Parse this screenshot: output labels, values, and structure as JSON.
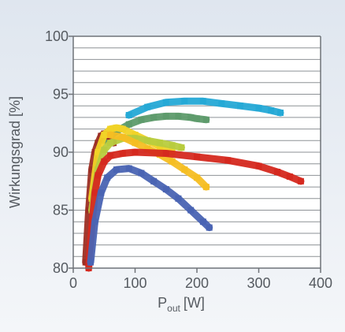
{
  "chart_data": {
    "type": "scatter",
    "xlabel": "P",
    "xlabel_sub": "out",
    "xlabel_unit": "[W]",
    "ylabel": "Wirkungsgrad [%]",
    "xlim": [
      0,
      400
    ],
    "ylim": [
      80,
      100
    ],
    "x_ticks": [
      "0",
      "100",
      "200",
      "300",
      "400"
    ],
    "y_ticks": [
      "80",
      "85",
      "90",
      "95",
      "100"
    ],
    "grid": "horizontal",
    "colors": {
      "background_top": "#dfe6ef",
      "background_bottom": "#f4f6f9",
      "plot_bg": "#ffffff",
      "grid": "#8e9296",
      "axis": "#6f7378",
      "text": "#555a60"
    },
    "series": [
      {
        "color": "#25a9d6",
        "x": [
          90,
          120,
          150,
          180,
          210,
          240,
          270,
          300,
          320,
          335
        ],
        "y": [
          93.2,
          93.9,
          94.3,
          94.4,
          94.4,
          94.2,
          94.0,
          93.8,
          93.6,
          93.4
        ]
      },
      {
        "color": "#5e9b6c",
        "x": [
          50,
          70,
          90,
          110,
          130,
          150,
          170,
          190,
          200,
          215
        ],
        "y": [
          91.0,
          91.8,
          92.4,
          92.8,
          93.0,
          93.1,
          93.1,
          93.0,
          92.9,
          92.8
        ]
      },
      {
        "color": "#9c2f24",
        "x": [
          20,
          25,
          30,
          35,
          40,
          45,
          50,
          55,
          60,
          65
        ],
        "y": [
          80.5,
          85.0,
          88.5,
          90.0,
          90.8,
          91.4,
          91.6,
          91.5,
          91.2,
          90.8
        ]
      },
      {
        "color": "#f1d327",
        "x": [
          30,
          40,
          50,
          60,
          70,
          80,
          100,
          120,
          140,
          160
        ],
        "y": [
          86.0,
          90.0,
          91.5,
          92.0,
          92.1,
          92.0,
          91.5,
          91.0,
          90.5,
          90.0
        ]
      },
      {
        "color": "#b8cc3e",
        "x": [
          30,
          40,
          50,
          60,
          80,
          100,
          120,
          140,
          160,
          175
        ],
        "y": [
          85.0,
          88.5,
          90.2,
          90.8,
          91.2,
          91.2,
          91.0,
          90.8,
          90.6,
          90.4
        ]
      },
      {
        "color": "#f5be23",
        "x": [
          60,
          80,
          100,
          120,
          140,
          160,
          180,
          200,
          215
        ],
        "y": [
          91.5,
          91.3,
          90.8,
          90.3,
          89.8,
          89.2,
          88.5,
          87.8,
          87.0
        ]
      },
      {
        "color": "#d5291f",
        "x": [
          25,
          30,
          35,
          40,
          50,
          60,
          80,
          100,
          150,
          200,
          250,
          300,
          330,
          350,
          368
        ],
        "y": [
          80.0,
          83.5,
          86.5,
          88.0,
          89.2,
          89.7,
          89.9,
          90.0,
          89.9,
          89.6,
          89.3,
          88.8,
          88.3,
          87.9,
          87.5
        ]
      },
      {
        "color": "#4a64b3",
        "x": [
          28,
          35,
          45,
          55,
          70,
          90,
          110,
          130,
          150,
          170,
          190,
          210,
          220
        ],
        "y": [
          80.5,
          84.0,
          86.5,
          87.8,
          88.5,
          88.6,
          88.2,
          87.5,
          86.8,
          86.0,
          85.0,
          84.0,
          83.5
        ]
      }
    ]
  }
}
